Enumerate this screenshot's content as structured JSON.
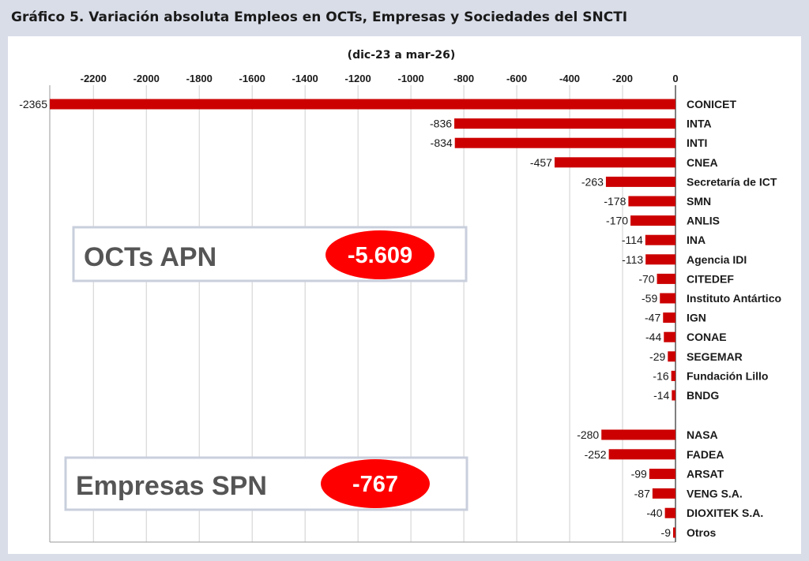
{
  "figure_title": "Gráfico 5. Variación absoluta Empleos en OCTs, Empresas y Sociedades del SNCTI",
  "chart_data": {
    "type": "bar",
    "orientation": "horizontal",
    "title": "(dic-23 a mar-26)",
    "xlim": [
      -2365,
      0
    ],
    "x_ticks": [
      "-2200",
      "-2000",
      "-1800",
      "-1600",
      "-1400",
      "-1200",
      "-1000",
      "-800",
      "-600",
      "-400",
      "-200",
      "0"
    ],
    "x_tick_values": [
      -2200,
      -2000,
      -1800,
      -1600,
      -1400,
      -1200,
      -1000,
      -800,
      -600,
      -400,
      -200,
      0
    ],
    "grid": true,
    "bar_color": "#cc0000",
    "categories": [
      "CONICET",
      "INTA",
      "INTI",
      "CNEA",
      "Secretaría de ICT",
      "SMN",
      "ANLIS",
      "INA",
      "Agencia IDI",
      "CITEDEF",
      "Instituto Antártico",
      "IGN",
      "CONAE",
      "SEGEMAR",
      "Fundación Lillo",
      "BNDG",
      "NASA",
      "FADEA",
      "ARSAT",
      "VENG S.A.",
      "DIOXITEK S.A.",
      "Otros"
    ],
    "values": [
      -2365,
      -836,
      -834,
      -457,
      -263,
      -178,
      -170,
      -114,
      -113,
      -70,
      -59,
      -47,
      -44,
      -29,
      -16,
      -14,
      -280,
      -252,
      -99,
      -87,
      -40,
      -9
    ],
    "value_labels": [
      "-2365",
      "-836",
      "-834",
      "-457",
      "-263",
      "-178",
      "-170",
      "-114",
      "-113",
      "-70",
      "-59",
      "-47",
      "-44",
      "-29",
      "-16",
      "-14",
      "-280",
      "-252",
      "-99",
      "-87",
      "-40",
      "-9"
    ],
    "groups": [
      {
        "label": "OCTs APN",
        "total": "-5.609",
        "first": 0,
        "count": 16
      },
      {
        "label": "Empresas SPN",
        "total": "-767",
        "first": 16,
        "count": 6
      }
    ]
  },
  "colors": {
    "bar": "#cc0000",
    "badge": "#ff0000",
    "badge_text": "#ffffff",
    "box_border": "#c9cfdc",
    "box_text": "#555555",
    "grid": "#cfcfcf",
    "panel_bg": "#d9dde8"
  }
}
